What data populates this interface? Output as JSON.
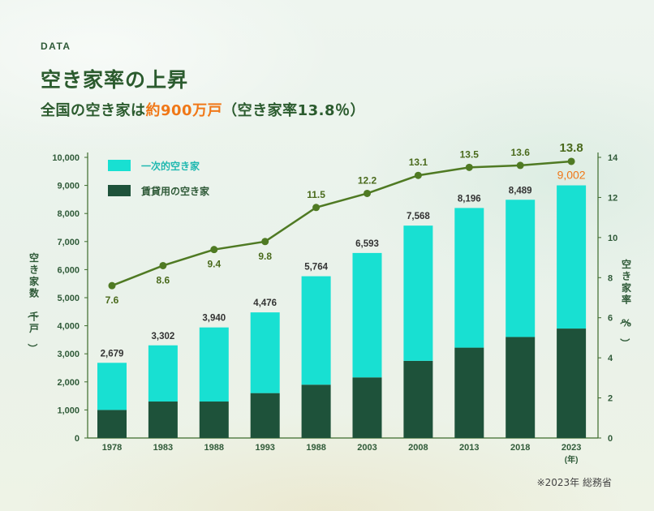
{
  "header": {
    "kicker": "DATA",
    "title": "空き家率の上昇",
    "subtitle_prefix": "全国の空き家は",
    "subtitle_highlight": "約900万戸",
    "subtitle_suffix": "（空き家率13.8％）"
  },
  "source": "※2023年 総務省",
  "colors": {
    "primary_vacant": "#18e0d2",
    "rental_vacant": "#1e523a",
    "rate_line": "#4f7a23",
    "highlight": "#f07818",
    "text": "#2b5b2e"
  },
  "chart_data": {
    "type": "bar",
    "categories": [
      "1978",
      "1983",
      "1988",
      "1993",
      "1988",
      "2003",
      "2008",
      "2013",
      "2018",
      "2023"
    ],
    "x_unit": "(年)",
    "series": [
      {
        "name": "一次的空き家",
        "values": [
          1679,
          2002,
          2640,
          2876,
          3864,
          4433,
          4818,
          4976,
          4889,
          5102
        ]
      },
      {
        "name": "賃貸用の空き家",
        "values": [
          1000,
          1300,
          1300,
          1600,
          1900,
          2160,
          2750,
          3220,
          3600,
          3900
        ]
      }
    ],
    "totals": [
      2679,
      3302,
      3940,
      4476,
      5764,
      6593,
      7568,
      8196,
      8489,
      9002
    ],
    "total_labels": [
      "2,679",
      "3,302",
      "3,940",
      "4,476",
      "5,764",
      "6,593",
      "7,568",
      "8,196",
      "8,489",
      "9,002"
    ],
    "rate": {
      "type": "line",
      "values": [
        7.6,
        8.6,
        9.4,
        9.8,
        11.5,
        12.2,
        13.1,
        13.5,
        13.6,
        13.8
      ],
      "labels": [
        "7.6",
        "8.6",
        "9.4",
        "9.8",
        "11.5",
        "12.2",
        "13.1",
        "13.5",
        "13.6",
        "13.8"
      ]
    },
    "ylabel_left": "空き家数（千戸）",
    "ylabel_right": "空き家率（%）",
    "y_left_ticks": [
      "0",
      "1,000",
      "2,000",
      "3,000",
      "4,000",
      "5,000",
      "6,000",
      "7,000",
      "8,000",
      "9,000",
      "10,000"
    ],
    "y_right_ticks": [
      "0",
      "2",
      "4",
      "6",
      "8",
      "10",
      "12",
      "14"
    ],
    "ylim_left": [
      0,
      10000
    ],
    "ylim_right": [
      0,
      14
    ],
    "legend": [
      "一次的空き家",
      "賃貸用の空き家"
    ],
    "legend_position": "top-left",
    "grid": false
  }
}
